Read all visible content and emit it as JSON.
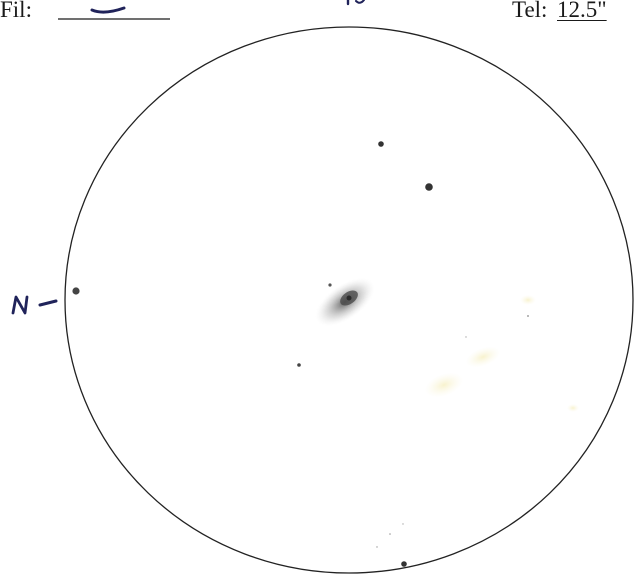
{
  "form": {
    "filter_label": "Fil:",
    "filter_value": "—",
    "telescope_label": "Tel:",
    "telescope_value": "12.5\""
  },
  "sketch": {
    "orientation_mark": "N",
    "galaxy_fuzz_color": "#b9b9b9",
    "star_color": "#3a3a3a",
    "eyepiece_circle_color": "#222222"
  }
}
